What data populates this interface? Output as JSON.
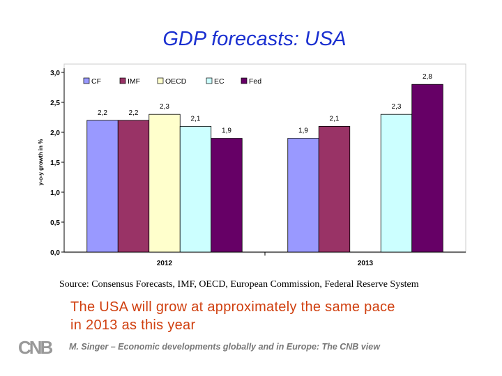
{
  "title": "GDP forecasts: USA",
  "chart_data": {
    "type": "bar",
    "ylabel": "y-o-y growth in %",
    "ylim": [
      0,
      3
    ],
    "yticks": [
      "0,0",
      "0,5",
      "1,0",
      "1,5",
      "2,0",
      "2,5",
      "3,0"
    ],
    "categories": [
      "2012",
      "2013"
    ],
    "legend_position": "top",
    "series": [
      {
        "name": "CF",
        "color": "#9999ff",
        "values": [
          2.2,
          1.9
        ],
        "labels": [
          "2,2",
          "1,9"
        ]
      },
      {
        "name": "IMF",
        "color": "#993366",
        "values": [
          2.2,
          2.1
        ],
        "labels": [
          "2,2",
          "2,1"
        ]
      },
      {
        "name": "OECD",
        "color": "#ffffcc",
        "values": [
          2.3,
          null
        ],
        "labels": [
          "2,3",
          ""
        ]
      },
      {
        "name": "EC",
        "color": "#ccffff",
        "values": [
          2.1,
          2.3
        ],
        "labels": [
          "2,1",
          "2,3"
        ]
      },
      {
        "name": "Fed",
        "color": "#660066",
        "values": [
          1.9,
          2.8
        ],
        "labels": [
          "1,9",
          "2,8"
        ]
      }
    ]
  },
  "source": "Source: Consensus Forecasts, IMF, OECD, European Commission, Federal Reserve System",
  "message": [
    "The USA will grow at approximately the same pace",
    "in 2013 as this year"
  ],
  "footer": "M. Singer – Economic developments globally and in Europe: The CNB view",
  "logo": "CNB"
}
